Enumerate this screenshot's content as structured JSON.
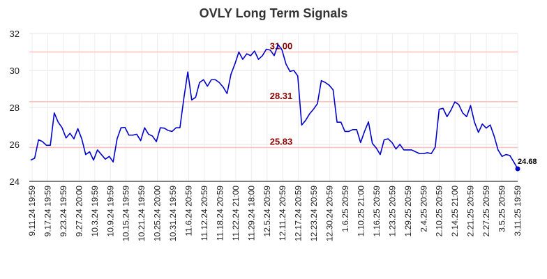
{
  "chart_data": {
    "type": "line",
    "title": "OVLY Long Term Signals",
    "ylim": [
      24,
      32
    ],
    "yticks": [
      24,
      26,
      28,
      30,
      32
    ],
    "grid": true,
    "x_tick_labels": [
      "9.11.24 19:59",
      "9.17.24 19:59",
      "9.23.24 19:59",
      "9.27.24 20:00",
      "10.3.24 19:59",
      "10.9.24 19:59",
      "10.15.24 19:59",
      "10.21.24 19:59",
      "10.25.24 20:00",
      "10.31.24 19:59",
      "11.6.24 20:59",
      "11.12.24 20:59",
      "11.18.24 20:59",
      "11.22.24 21:00",
      "11.29.24 18:00",
      "12.5.24 20:59",
      "12.11.24 20:59",
      "12.17.24 20:59",
      "12.23.24 20:59",
      "12.30.24 20:59",
      "1.6.25 20:59",
      "1.10.25 21:00",
      "1.16.25 20:59",
      "1.23.25 20:59",
      "1.29.25 20:59",
      "2.4.25 20:59",
      "2.10.25 20:59",
      "2.14.25 21:00",
      "2.21.25 20:59",
      "2.27.25 20:59",
      "3.5.25 20:59",
      "3.11.25 19:59"
    ],
    "levels": [
      {
        "label": "31.00",
        "value": 31.0,
        "line_color": "#ffc0c0",
        "label_color": "#8b0000"
      },
      {
        "label": "28.31",
        "value": 28.31,
        "line_color": "#ffc0c0",
        "label_color": "#8b0000"
      },
      {
        "label": "25.83",
        "value": 25.83,
        "line_color": "#ffc0c0",
        "label_color": "#8b0000"
      }
    ],
    "series": [
      {
        "color": "#0000cc",
        "values": [
          25.15,
          25.25,
          26.25,
          26.15,
          25.95,
          25.95,
          27.7,
          27.2,
          26.9,
          26.35,
          26.6,
          26.3,
          26.85,
          26.3,
          25.45,
          25.6,
          25.15,
          25.7,
          25.45,
          25.2,
          25.35,
          25.05,
          26.3,
          26.9,
          26.92,
          26.5,
          26.5,
          26.55,
          26.2,
          26.9,
          26.55,
          26.45,
          26.15,
          26.9,
          26.88,
          26.75,
          26.7,
          26.9,
          26.9,
          28.5,
          29.92,
          28.4,
          28.55,
          29.35,
          29.5,
          29.15,
          29.5,
          29.5,
          29.35,
          29.1,
          28.75,
          29.8,
          30.35,
          31.0,
          30.6,
          30.9,
          30.8,
          31.05,
          30.6,
          30.8,
          31.15,
          31.1,
          30.8,
          31.4,
          31.1,
          30.35,
          29.95,
          30.0,
          29.7,
          27.05,
          27.3,
          27.65,
          27.9,
          28.2,
          29.45,
          29.35,
          29.2,
          28.95,
          27.2,
          27.2,
          26.7,
          26.7,
          26.8,
          26.8,
          26.1,
          26.7,
          27.22,
          26.05,
          25.8,
          25.45,
          26.25,
          26.3,
          26.1,
          25.75,
          26.0,
          25.7,
          25.7,
          25.7,
          25.6,
          25.5,
          25.5,
          25.55,
          25.5,
          25.85,
          27.9,
          27.95,
          27.5,
          27.85,
          28.3,
          28.15,
          27.7,
          27.5,
          28.1,
          27.2,
          26.65,
          27.1,
          26.88,
          27.05,
          26.45,
          25.7,
          25.35,
          25.45,
          25.4,
          25.05,
          24.68
        ]
      }
    ],
    "last_value": {
      "label": "24.68",
      "value": 24.68
    }
  }
}
